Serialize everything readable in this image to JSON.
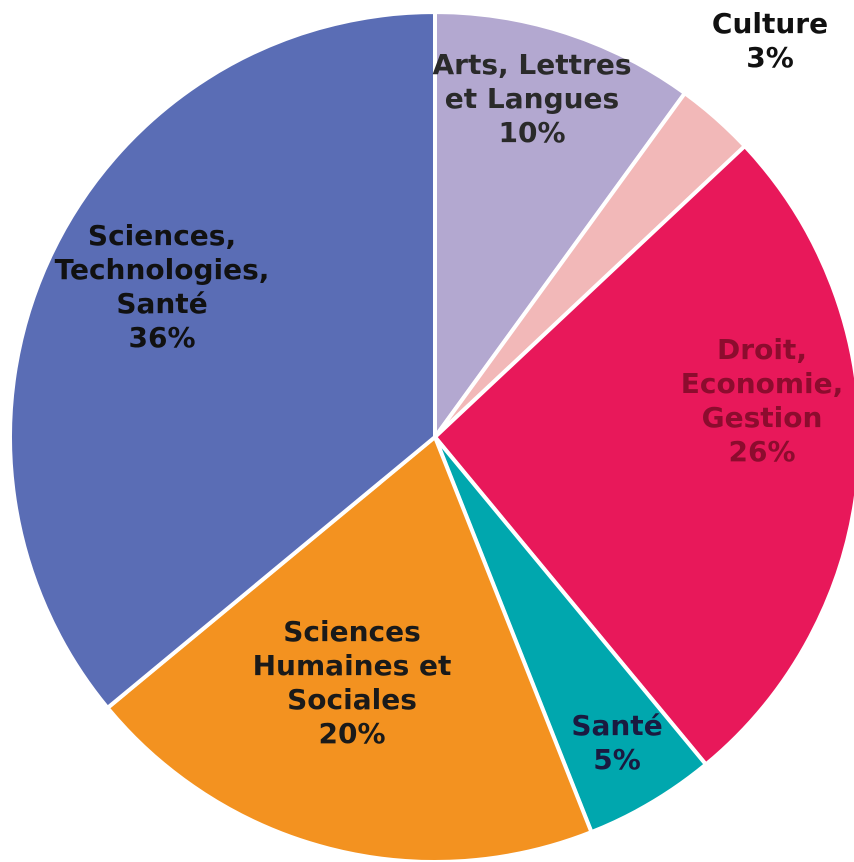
{
  "chart_data": {
    "type": "pie",
    "title": "",
    "slices": [
      {
        "name": "Arts, Lettres et Langues",
        "lines": [
          "Arts, Lettres",
          "et Langues"
        ],
        "value": 10,
        "value_label": "10%",
        "color": "#b3a8d0",
        "label_color": "#2a2a2a"
      },
      {
        "name": "Culture",
        "lines": [
          "Culture"
        ],
        "value": 3,
        "value_label": "3%",
        "color": "#f2b8b8",
        "label_color": "#111111"
      },
      {
        "name": "Droit, Economie, Gestion",
        "lines": [
          "Droit,",
          "Economie,",
          "Gestion"
        ],
        "value": 26,
        "value_label": "26%",
        "color": "#e8185a",
        "label_color": "#8c0c2e"
      },
      {
        "name": "Santé",
        "lines": [
          "Santé"
        ],
        "value": 5,
        "value_label": "5%",
        "color": "#00a7ae",
        "label_color": "#1a1a40"
      },
      {
        "name": "Sciences Humaines et Sociales",
        "lines": [
          "Sciences",
          "Humaines et",
          "Sociales"
        ],
        "value": 20,
        "value_label": "20%",
        "color": "#f39220",
        "label_color": "#1a1a1a"
      },
      {
        "name": "Sciences, Technologies, Santé",
        "lines": [
          "Sciences,",
          "Technologies,",
          "Santé"
        ],
        "value": 36,
        "value_label": "36%",
        "color": "#5a6db5",
        "label_color": "#111111"
      }
    ]
  }
}
